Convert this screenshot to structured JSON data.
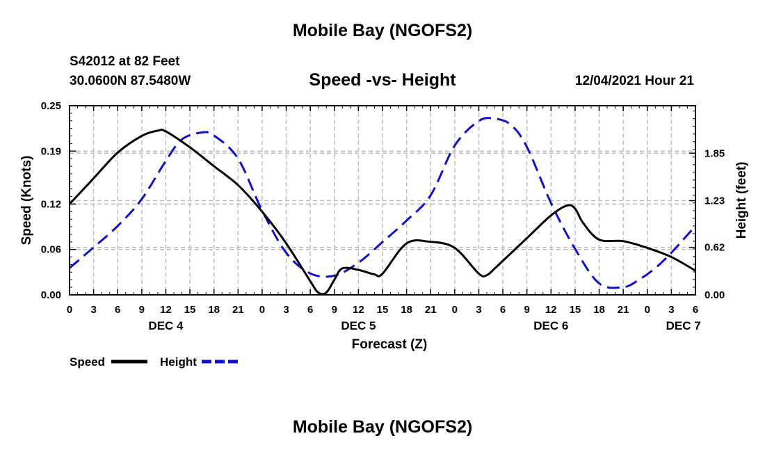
{
  "header": {
    "title": "Mobile Bay (NGOFS2)",
    "station": "S42012 at 82 Feet",
    "coords": "30.0600N  87.5480W",
    "subtitle": "Speed -vs- Height",
    "datetime": "12/04/2021 Hour 21"
  },
  "footer": {
    "title": "Mobile Bay (NGOFS2)"
  },
  "chart_data": {
    "type": "line",
    "title": "Speed -vs- Height",
    "xlabel": "Forecast (Z)",
    "ylabel": "Speed (Knots)",
    "y2label": "Height (feet)",
    "x_range_hours": [
      0,
      78
    ],
    "x_tick_labels": [
      "0",
      "3",
      "6",
      "9",
      "12",
      "15",
      "18",
      "21",
      "0",
      "3",
      "6",
      "9",
      "12",
      "15",
      "18",
      "21",
      "0",
      "3",
      "6",
      "9",
      "12",
      "15",
      "18",
      "21",
      "0",
      "3",
      "6"
    ],
    "day_labels": [
      {
        "label": "DEC 4",
        "hour": 12
      },
      {
        "label": "DEC 5",
        "hour": 36
      },
      {
        "label": "DEC 6",
        "hour": 60
      },
      {
        "label": "DEC 7",
        "hour": 76.5
      }
    ],
    "y_left": {
      "min": 0,
      "max": 0.25,
      "ticks": [
        0,
        0.06,
        0.12,
        0.19,
        0.25
      ],
      "tick_labels": [
        "0.00",
        "0.06",
        "0.12",
        "0.19",
        "0.25"
      ]
    },
    "y_right": {
      "min": 0,
      "max": 2.47,
      "ticks": [
        0,
        0.62,
        1.23,
        1.85
      ],
      "tick_labels": [
        "0.00",
        "0.62",
        "1.23",
        "1.85"
      ]
    },
    "grid": true,
    "series": [
      {
        "name": "Speed",
        "axis": "left",
        "color": "#000000",
        "dash": "solid",
        "x": [
          0,
          3,
          6,
          9,
          11,
          12,
          15,
          18,
          21,
          24,
          27,
          30,
          31,
          32,
          33,
          34,
          36,
          38,
          39,
          42,
          45,
          48,
          51,
          52,
          53,
          54,
          57,
          60,
          62,
          63,
          64,
          66,
          69,
          72,
          75,
          78
        ],
        "y": [
          0.12,
          0.154,
          0.188,
          0.21,
          0.217,
          0.216,
          0.195,
          0.17,
          0.145,
          0.11,
          0.068,
          0.018,
          0.003,
          0.003,
          0.02,
          0.035,
          0.033,
          0.027,
          0.028,
          0.068,
          0.07,
          0.062,
          0.028,
          0.026,
          0.035,
          0.045,
          0.075,
          0.105,
          0.118,
          0.114,
          0.095,
          0.073,
          0.071,
          0.062,
          0.05,
          0.032
        ]
      },
      {
        "name": "Height",
        "axis": "right",
        "color": "#1010c8",
        "dash": "dashed",
        "x": [
          0,
          3,
          6,
          9,
          12,
          14,
          16.5,
          18,
          21,
          24,
          27,
          30,
          33,
          36,
          39,
          42,
          45,
          48,
          51,
          53,
          55,
          57,
          60,
          63,
          66,
          69,
          71,
          73,
          75,
          78
        ],
        "y": [
          0.35,
          0.62,
          0.9,
          1.25,
          1.75,
          2.03,
          2.12,
          2.08,
          1.78,
          1.1,
          0.55,
          0.28,
          0.25,
          0.42,
          0.69,
          0.97,
          1.3,
          1.95,
          2.27,
          2.3,
          2.22,
          1.93,
          1.2,
          0.6,
          0.15,
          0.1,
          0.2,
          0.35,
          0.55,
          0.9
        ]
      }
    ],
    "legend": {
      "placement": "bottom-left",
      "items": [
        "Speed",
        "Height"
      ]
    }
  }
}
